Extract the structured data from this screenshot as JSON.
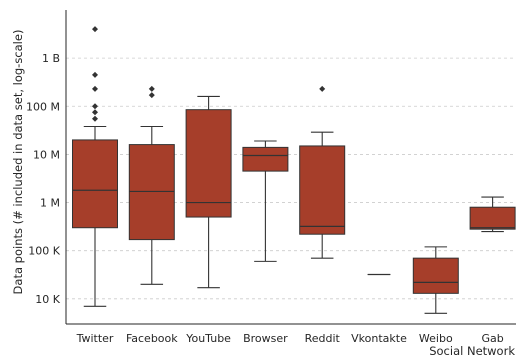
{
  "chart_data": {
    "type": "box",
    "xlabel": "Social Network",
    "ylabel": "Data points (# included in data set, log-scale)",
    "y_scale": "log",
    "ylim": [
      3000,
      10000000000
    ],
    "y_ticks": [
      {
        "value": 10000,
        "label": "10 K"
      },
      {
        "value": 100000,
        "label": "100 K"
      },
      {
        "value": 1000000,
        "label": "1 M"
      },
      {
        "value": 10000000,
        "label": "10 M"
      },
      {
        "value": 100000000,
        "label": "100 M"
      },
      {
        "value": 1000000000,
        "label": "1 B"
      }
    ],
    "grid": true,
    "box_color": "#a63e2a",
    "categories": [
      "Twitter",
      "Facebook",
      "YouTube",
      "Browser",
      "Reddit",
      "Vkontakte",
      "Weibo",
      "Gab"
    ],
    "boxes": [
      {
        "category": "Twitter",
        "whisker_low": 7000,
        "q1": 300000,
        "median": 1800000,
        "q3": 20000000,
        "whisker_high": 38000000,
        "fliers": [
          4000000000,
          450000000,
          230000000,
          100000000,
          75000000,
          55000000
        ]
      },
      {
        "category": "Facebook",
        "whisker_low": 20000,
        "q1": 170000,
        "median": 1700000,
        "q3": 16000000,
        "whisker_high": 38000000,
        "fliers": [
          230000000,
          170000000
        ]
      },
      {
        "category": "YouTube",
        "whisker_low": 17000,
        "q1": 500000,
        "median": 1000000,
        "q3": 85000000,
        "whisker_high": 160000000,
        "fliers": []
      },
      {
        "category": "Browser",
        "whisker_low": 60000,
        "q1": 4500000,
        "median": 9500000,
        "q3": 14000000,
        "whisker_high": 19000000,
        "fliers": []
      },
      {
        "category": "Reddit",
        "whisker_low": 70000,
        "q1": 220000,
        "median": 320000,
        "q3": 15000000,
        "whisker_high": 29000000,
        "fliers": [
          230000000
        ]
      },
      {
        "category": "Vkontakte",
        "whisker_low": 32000,
        "q1": 32000,
        "median": 32000,
        "q3": 32000,
        "whisker_high": 32000,
        "fliers": []
      },
      {
        "category": "Weibo",
        "whisker_low": 5000,
        "q1": 13000,
        "median": 22000,
        "q3": 70000,
        "whisker_high": 120000,
        "fliers": []
      },
      {
        "category": "Gab",
        "whisker_low": 250000,
        "q1": 280000,
        "median": 300000,
        "q3": 800000,
        "whisker_high": 1300000,
        "fliers": []
      }
    ]
  }
}
